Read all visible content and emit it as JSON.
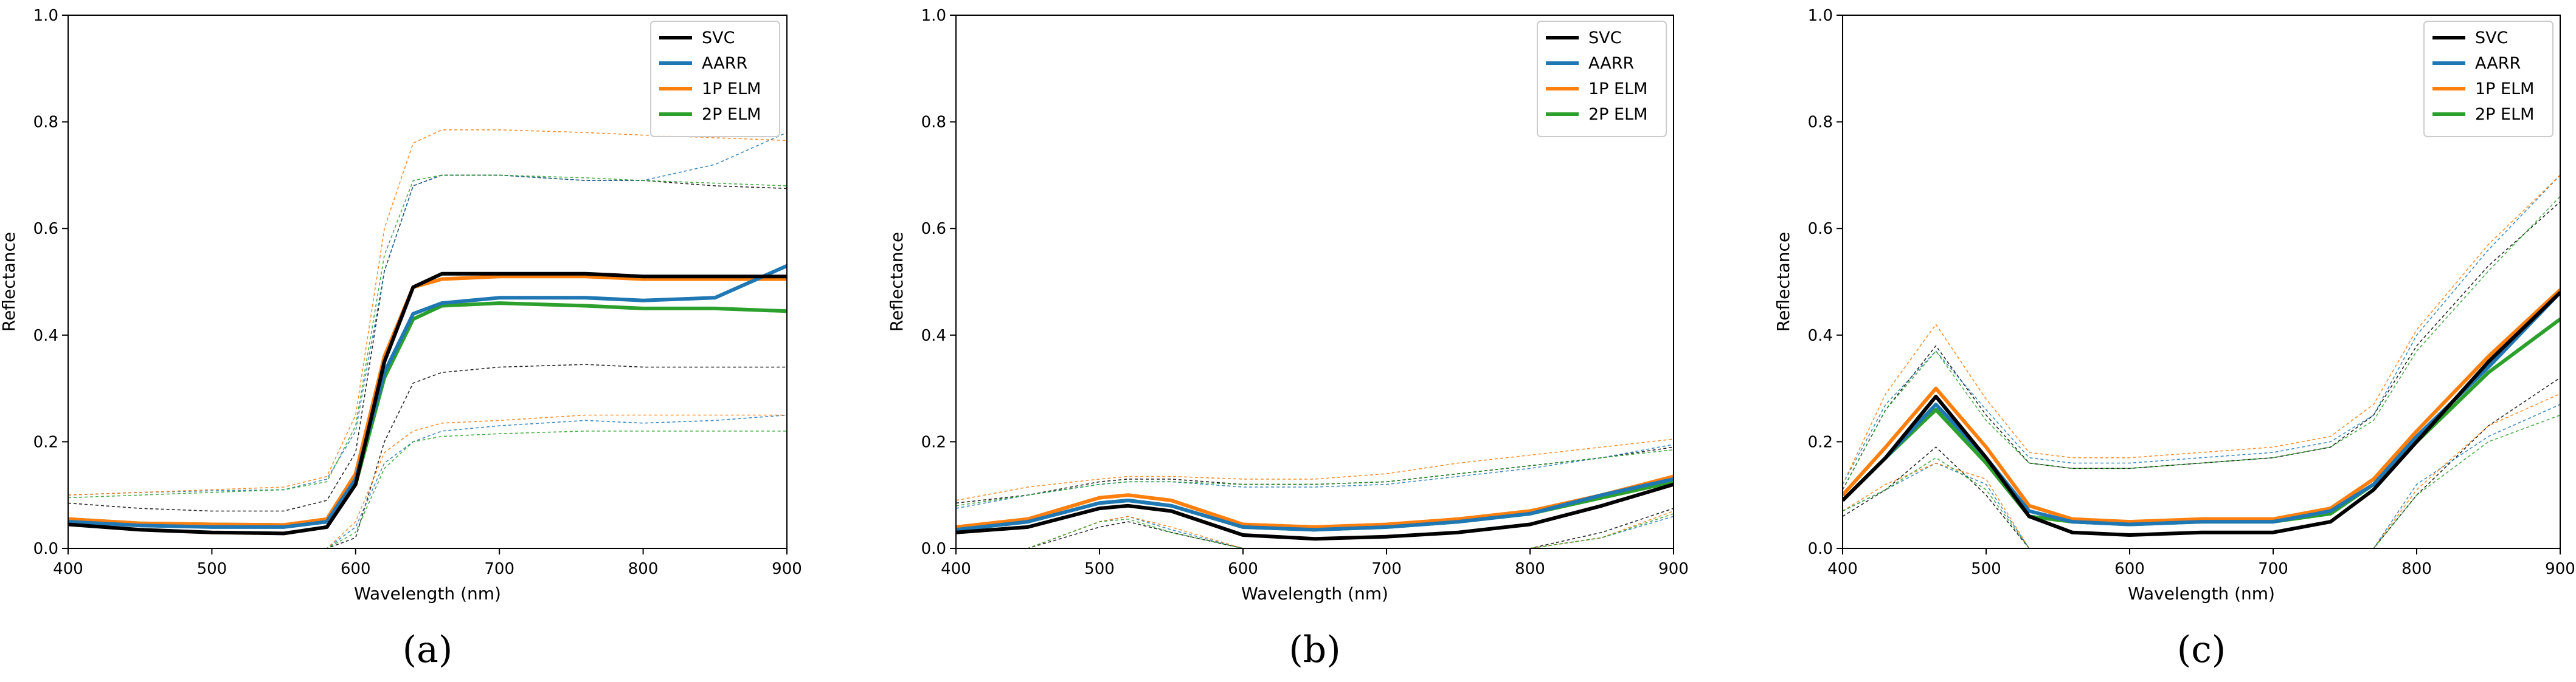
{
  "figure": {
    "panel_labels": [
      "(a)",
      "(b)",
      "(c)"
    ],
    "colors": {
      "SVC": "#000000",
      "AARR": "#1f77b4",
      "1P ELM": "#ff7f0e",
      "2P ELM": "#2ca02c"
    }
  },
  "chart_data": [
    {
      "type": "line",
      "panel": "(a)",
      "xlabel": "Wavelength (nm)",
      "ylabel": "Reflectance",
      "xlim": [
        400,
        900
      ],
      "ylim": [
        0,
        1.0
      ],
      "xticks": [
        "400",
        "500",
        "600",
        "700",
        "800",
        "900"
      ],
      "yticks": [
        "0.0",
        "0.2",
        "0.4",
        "0.6",
        "0.8",
        "1.0"
      ],
      "legend": [
        "SVC",
        "AARR",
        "1P ELM",
        "2P ELM"
      ],
      "legend_position": "top-right",
      "x": [
        400,
        450,
        500,
        550,
        580,
        600,
        620,
        640,
        660,
        700,
        760,
        800,
        850,
        900
      ],
      "series": [
        {
          "name": "SVC",
          "values": [
            0.045,
            0.035,
            0.03,
            0.028,
            0.04,
            0.12,
            0.35,
            0.49,
            0.515,
            0.515,
            0.515,
            0.51,
            0.51,
            0.51
          ],
          "upper": [
            0.085,
            0.075,
            0.07,
            0.07,
            0.09,
            0.18,
            0.52,
            0.68,
            0.7,
            0.7,
            0.69,
            0.69,
            0.68,
            0.675
          ],
          "lower": [
            0.0,
            0.0,
            0.0,
            0.0,
            0.0,
            0.02,
            0.2,
            0.31,
            0.33,
            0.34,
            0.345,
            0.34,
            0.34,
            0.34
          ]
        },
        {
          "name": "AARR",
          "values": [
            0.05,
            0.043,
            0.04,
            0.04,
            0.05,
            0.13,
            0.33,
            0.44,
            0.46,
            0.47,
            0.47,
            0.465,
            0.47,
            0.53
          ],
          "upper": [
            0.1,
            0.105,
            0.108,
            0.11,
            0.13,
            0.22,
            0.52,
            0.68,
            0.7,
            0.7,
            0.69,
            0.69,
            0.72,
            0.78
          ],
          "lower": [
            0.0,
            0.0,
            0.0,
            0.0,
            0.0,
            0.04,
            0.16,
            0.2,
            0.22,
            0.23,
            0.24,
            0.235,
            0.24,
            0.25
          ]
        },
        {
          "name": "1P ELM",
          "values": [
            0.055,
            0.047,
            0.045,
            0.044,
            0.055,
            0.14,
            0.36,
            0.49,
            0.505,
            0.51,
            0.51,
            0.505,
            0.505,
            0.505
          ],
          "upper": [
            0.1,
            0.105,
            0.11,
            0.115,
            0.135,
            0.25,
            0.6,
            0.76,
            0.785,
            0.785,
            0.78,
            0.775,
            0.77,
            0.765
          ],
          "lower": [
            0.0,
            0.0,
            0.0,
            0.0,
            0.0,
            0.05,
            0.18,
            0.22,
            0.235,
            0.24,
            0.25,
            0.25,
            0.25,
            0.25
          ]
        },
        {
          "name": "2P ELM",
          "values": [
            0.055,
            0.047,
            0.045,
            0.044,
            0.05,
            0.12,
            0.32,
            0.43,
            0.455,
            0.46,
            0.455,
            0.45,
            0.45,
            0.445
          ],
          "upper": [
            0.095,
            0.1,
            0.105,
            0.11,
            0.125,
            0.23,
            0.55,
            0.69,
            0.7,
            0.7,
            0.695,
            0.69,
            0.685,
            0.68
          ],
          "lower": [
            0.0,
            0.0,
            0.0,
            0.0,
            0.0,
            0.03,
            0.15,
            0.2,
            0.21,
            0.215,
            0.22,
            0.22,
            0.22,
            0.22
          ]
        }
      ]
    },
    {
      "type": "line",
      "panel": "(b)",
      "xlabel": "Wavelength (nm)",
      "ylabel": "Reflectance",
      "xlim": [
        400,
        900
      ],
      "ylim": [
        0,
        1.0
      ],
      "xticks": [
        "400",
        "500",
        "600",
        "700",
        "800",
        "900"
      ],
      "yticks": [
        "0.0",
        "0.2",
        "0.4",
        "0.6",
        "0.8",
        "1.0"
      ],
      "legend": [
        "SVC",
        "AARR",
        "1P ELM",
        "2P ELM"
      ],
      "legend_position": "top-right",
      "x": [
        400,
        450,
        500,
        520,
        550,
        600,
        650,
        700,
        750,
        800,
        850,
        900
      ],
      "series": [
        {
          "name": "SVC",
          "values": [
            0.03,
            0.04,
            0.075,
            0.08,
            0.07,
            0.025,
            0.018,
            0.022,
            0.03,
            0.045,
            0.08,
            0.12
          ],
          "upper": [
            0.085,
            0.1,
            0.125,
            0.13,
            0.13,
            0.12,
            0.12,
            0.125,
            0.14,
            0.155,
            0.17,
            0.19
          ],
          "lower": [
            0.0,
            0.0,
            0.04,
            0.05,
            0.03,
            0.0,
            0.0,
            0.0,
            0.0,
            0.0,
            0.03,
            0.075
          ]
        },
        {
          "name": "AARR",
          "values": [
            0.035,
            0.05,
            0.085,
            0.09,
            0.08,
            0.04,
            0.035,
            0.04,
            0.05,
            0.065,
            0.1,
            0.13
          ],
          "upper": [
            0.075,
            0.1,
            0.12,
            0.125,
            0.125,
            0.115,
            0.115,
            0.12,
            0.135,
            0.15,
            0.17,
            0.195
          ],
          "lower": [
            0.0,
            0.0,
            0.05,
            0.06,
            0.035,
            0.0,
            0.0,
            0.0,
            0.0,
            0.0,
            0.02,
            0.06
          ]
        },
        {
          "name": "1P ELM",
          "values": [
            0.04,
            0.055,
            0.095,
            0.1,
            0.09,
            0.045,
            0.04,
            0.045,
            0.055,
            0.07,
            0.1,
            0.135
          ],
          "upper": [
            0.09,
            0.115,
            0.13,
            0.135,
            0.135,
            0.13,
            0.13,
            0.14,
            0.16,
            0.175,
            0.19,
            0.205
          ],
          "lower": [
            0.0,
            0.0,
            0.05,
            0.06,
            0.04,
            0.0,
            0.0,
            0.0,
            0.0,
            0.0,
            0.02,
            0.07
          ]
        },
        {
          "name": "2P ELM",
          "values": [
            0.035,
            0.05,
            0.085,
            0.09,
            0.08,
            0.04,
            0.035,
            0.04,
            0.05,
            0.065,
            0.095,
            0.125
          ],
          "upper": [
            0.08,
            0.1,
            0.12,
            0.125,
            0.125,
            0.12,
            0.12,
            0.125,
            0.14,
            0.155,
            0.17,
            0.185
          ],
          "lower": [
            0.0,
            0.0,
            0.05,
            0.055,
            0.03,
            0.0,
            0.0,
            0.0,
            0.0,
            0.0,
            0.02,
            0.065
          ]
        }
      ]
    },
    {
      "type": "line",
      "panel": "(c)",
      "xlabel": "Wavelength (nm)",
      "ylabel": "Reflectance",
      "xlim": [
        400,
        900
      ],
      "ylim": [
        0,
        1.0
      ],
      "xticks": [
        "400",
        "500",
        "600",
        "700",
        "800",
        "900"
      ],
      "yticks": [
        "0.0",
        "0.2",
        "0.4",
        "0.6",
        "0.8",
        "1.0"
      ],
      "legend": [
        "SVC",
        "AARR",
        "1P ELM",
        "2P ELM"
      ],
      "legend_position": "top-right",
      "x": [
        400,
        430,
        465,
        500,
        530,
        560,
        600,
        650,
        700,
        740,
        770,
        800,
        850,
        900
      ],
      "series": [
        {
          "name": "SVC",
          "values": [
            0.09,
            0.17,
            0.285,
            0.17,
            0.06,
            0.03,
            0.025,
            0.03,
            0.03,
            0.05,
            0.11,
            0.2,
            0.35,
            0.48
          ],
          "upper": [
            0.11,
            0.26,
            0.38,
            0.25,
            0.16,
            0.15,
            0.15,
            0.16,
            0.17,
            0.19,
            0.25,
            0.38,
            0.53,
            0.65
          ],
          "lower": [
            0.06,
            0.11,
            0.19,
            0.1,
            0.0,
            0.0,
            0.0,
            0.0,
            0.0,
            0.0,
            0.0,
            0.1,
            0.23,
            0.32
          ]
        },
        {
          "name": "AARR",
          "values": [
            0.09,
            0.17,
            0.27,
            0.17,
            0.07,
            0.05,
            0.045,
            0.05,
            0.05,
            0.07,
            0.12,
            0.21,
            0.34,
            0.48
          ],
          "upper": [
            0.12,
            0.27,
            0.37,
            0.26,
            0.17,
            0.16,
            0.16,
            0.17,
            0.18,
            0.2,
            0.25,
            0.4,
            0.56,
            0.7
          ],
          "lower": [
            0.07,
            0.11,
            0.16,
            0.12,
            0.0,
            0.0,
            0.0,
            0.0,
            0.0,
            0.0,
            0.0,
            0.12,
            0.21,
            0.27
          ]
        },
        {
          "name": "1P ELM",
          "values": [
            0.1,
            0.19,
            0.3,
            0.19,
            0.08,
            0.055,
            0.05,
            0.055,
            0.055,
            0.075,
            0.13,
            0.22,
            0.36,
            0.485
          ],
          "upper": [
            0.12,
            0.29,
            0.42,
            0.28,
            0.18,
            0.17,
            0.17,
            0.18,
            0.19,
            0.21,
            0.27,
            0.41,
            0.57,
            0.7
          ],
          "lower": [
            0.07,
            0.12,
            0.16,
            0.13,
            0.0,
            0.0,
            0.0,
            0.0,
            0.0,
            0.0,
            0.0,
            0.11,
            0.23,
            0.29
          ]
        },
        {
          "name": "2P ELM",
          "values": [
            0.09,
            0.17,
            0.26,
            0.16,
            0.06,
            0.05,
            0.045,
            0.05,
            0.05,
            0.065,
            0.12,
            0.2,
            0.33,
            0.43
          ],
          "upper": [
            0.11,
            0.26,
            0.37,
            0.24,
            0.16,
            0.15,
            0.15,
            0.16,
            0.17,
            0.19,
            0.24,
            0.37,
            0.52,
            0.66
          ],
          "lower": [
            0.07,
            0.11,
            0.17,
            0.11,
            0.0,
            0.0,
            0.0,
            0.0,
            0.0,
            0.0,
            0.0,
            0.1,
            0.2,
            0.25
          ]
        }
      ]
    }
  ]
}
